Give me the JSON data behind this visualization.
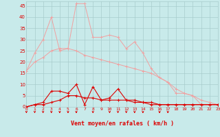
{
  "title": "",
  "xlabel": "Vent moyen/en rafales ( km/h )",
  "xlim": [
    0,
    23
  ],
  "ylim": [
    0,
    47
  ],
  "yticks": [
    0,
    5,
    10,
    15,
    20,
    25,
    30,
    35,
    40,
    45
  ],
  "xticks": [
    0,
    1,
    2,
    3,
    4,
    5,
    6,
    7,
    8,
    9,
    10,
    11,
    12,
    13,
    14,
    15,
    16,
    17,
    18,
    19,
    20,
    21,
    22,
    23
  ],
  "background_color": "#c8eaea",
  "grid_color": "#a8cccc",
  "line_color_light": "#f0a0a0",
  "line_color_dark": "#dd0000",
  "series_light1": [
    [
      0,
      16
    ],
    [
      1,
      24
    ],
    [
      2,
      30
    ],
    [
      3,
      40
    ],
    [
      4,
      25
    ],
    [
      5,
      26
    ],
    [
      6,
      46
    ],
    [
      7,
      46
    ],
    [
      8,
      31
    ],
    [
      9,
      31
    ],
    [
      10,
      32
    ],
    [
      11,
      31
    ],
    [
      12,
      26
    ],
    [
      13,
      29
    ],
    [
      14,
      24
    ],
    [
      15,
      17
    ],
    [
      16,
      13
    ],
    [
      17,
      11
    ],
    [
      18,
      6
    ],
    [
      19,
      6
    ],
    [
      20,
      5
    ],
    [
      21,
      1
    ],
    [
      22,
      1
    ],
    [
      23,
      1
    ]
  ],
  "series_light2": [
    [
      0,
      16
    ],
    [
      1,
      20
    ],
    [
      2,
      22
    ],
    [
      3,
      25
    ],
    [
      4,
      26
    ],
    [
      5,
      26
    ],
    [
      6,
      25
    ],
    [
      7,
      23
    ],
    [
      8,
      22
    ],
    [
      9,
      21
    ],
    [
      10,
      20
    ],
    [
      11,
      19
    ],
    [
      12,
      18
    ],
    [
      13,
      17
    ],
    [
      14,
      16
    ],
    [
      15,
      15
    ],
    [
      16,
      13
    ],
    [
      17,
      11
    ],
    [
      18,
      8
    ],
    [
      19,
      6
    ],
    [
      20,
      5
    ],
    [
      21,
      3
    ],
    [
      22,
      2
    ],
    [
      23,
      1
    ]
  ],
  "series_dark1": [
    [
      0,
      0
    ],
    [
      1,
      1
    ],
    [
      2,
      2
    ],
    [
      3,
      7
    ],
    [
      4,
      7
    ],
    [
      5,
      6
    ],
    [
      6,
      10
    ],
    [
      7,
      1
    ],
    [
      8,
      9
    ],
    [
      9,
      3
    ],
    [
      10,
      4
    ],
    [
      11,
      8
    ],
    [
      12,
      3
    ],
    [
      13,
      3
    ],
    [
      14,
      2
    ],
    [
      15,
      1
    ],
    [
      16,
      1
    ],
    [
      17,
      1
    ],
    [
      18,
      1
    ],
    [
      19,
      1
    ],
    [
      20,
      1
    ],
    [
      21,
      1
    ],
    [
      22,
      1
    ],
    [
      23,
      1
    ]
  ],
  "series_dark2": [
    [
      0,
      0
    ],
    [
      1,
      1
    ],
    [
      2,
      1
    ],
    [
      3,
      2
    ],
    [
      4,
      3
    ],
    [
      5,
      5
    ],
    [
      6,
      5
    ],
    [
      7,
      4
    ],
    [
      8,
      4
    ],
    [
      9,
      3
    ],
    [
      10,
      3
    ],
    [
      11,
      3
    ],
    [
      12,
      3
    ],
    [
      13,
      2
    ],
    [
      14,
      2
    ],
    [
      15,
      2
    ],
    [
      16,
      1
    ],
    [
      17,
      1
    ],
    [
      18,
      1
    ],
    [
      19,
      1
    ],
    [
      20,
      1
    ],
    [
      21,
      1
    ],
    [
      22,
      1
    ],
    [
      23,
      1
    ]
  ],
  "arrows_x": [
    0,
    1,
    2,
    3,
    4,
    5,
    6,
    8,
    10,
    11,
    12,
    13,
    14,
    16,
    17
  ]
}
